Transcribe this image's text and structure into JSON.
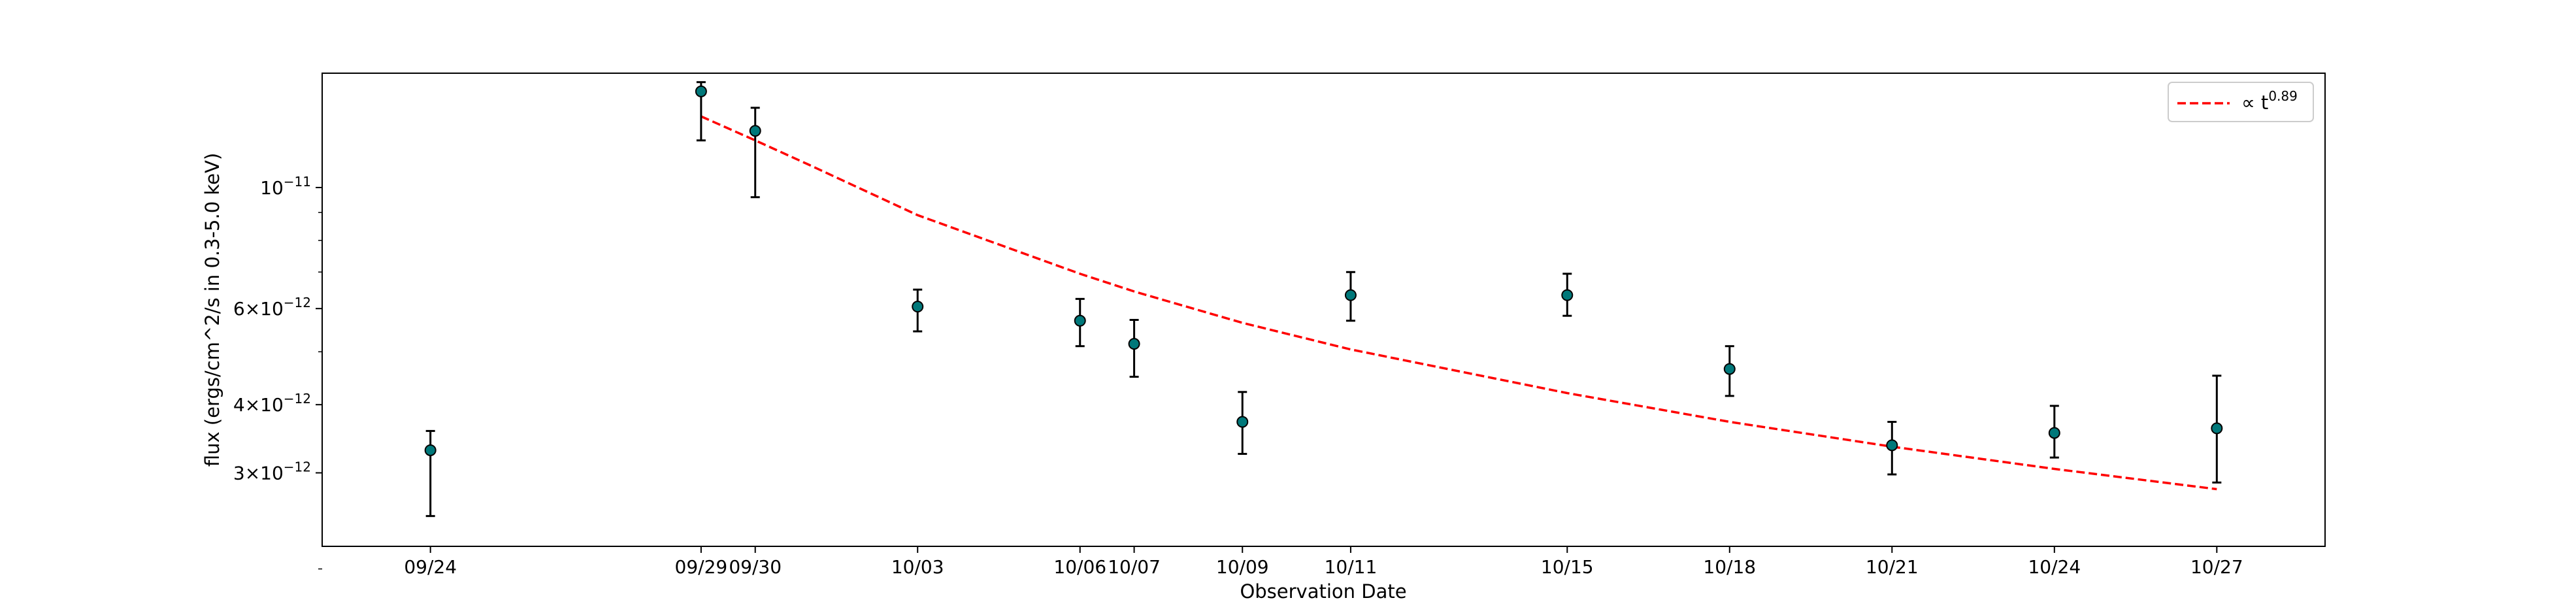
{
  "chart_data": {
    "type": "scatter",
    "title": "",
    "xlabel": "Observation Date",
    "ylabel": "flux (ergs/cm^2/s in 0.3-5.0 keV)",
    "yscale": "log",
    "ylim": [
      2.2e-12,
      1.62e-11
    ],
    "xlim": [
      "09/22",
      "10/29"
    ],
    "x_ticks": [
      "09/24",
      "09/29",
      "09/30",
      "10/03",
      "10/06",
      "10/07",
      "10/09",
      "10/11",
      "10/15",
      "10/18",
      "10/21",
      "10/24",
      "10/27"
    ],
    "y_ticks": [
      {
        "value": 1e-11,
        "mantissa": "10",
        "exp": "−11"
      },
      {
        "value": 6e-12,
        "mantissa": "6×10",
        "exp": "−12"
      },
      {
        "value": 4e-12,
        "mantissa": "4×10",
        "exp": "−12"
      },
      {
        "value": 3e-12,
        "mantissa": "3×10",
        "exp": "−12"
      }
    ],
    "y_minor_ticks": [
      2e-12,
      5e-12,
      7e-12,
      8e-12,
      9e-12
    ],
    "grid": false,
    "legend_position": "top-right",
    "colors": {
      "points": "#00787a",
      "error_bars": "#000000",
      "fit": "#ff0000"
    },
    "series": [
      {
        "kind": "data",
        "points": [
          {
            "x": "09/24",
            "y": 3.3e-12,
            "ylo": 2.5e-12,
            "yhi": 3.58e-12
          },
          {
            "x": "09/29",
            "y": 1.5e-11,
            "ylo": 1.22e-11,
            "yhi": 1.56e-11
          },
          {
            "x": "09/30",
            "y": 1.27e-11,
            "ylo": 9.6e-12,
            "yhi": 1.4e-11
          },
          {
            "x": "10/03",
            "y": 6.05e-12,
            "ylo": 5.45e-12,
            "yhi": 6.5e-12
          },
          {
            "x": "10/06",
            "y": 5.7e-12,
            "ylo": 5.12e-12,
            "yhi": 6.25e-12
          },
          {
            "x": "10/07",
            "y": 5.17e-12,
            "ylo": 4.5e-12,
            "yhi": 5.72e-12
          },
          {
            "x": "10/09",
            "y": 3.72e-12,
            "ylo": 3.25e-12,
            "yhi": 4.22e-12
          },
          {
            "x": "10/11",
            "y": 6.35e-12,
            "ylo": 5.7e-12,
            "yhi": 7e-12
          },
          {
            "x": "10/15",
            "y": 6.35e-12,
            "ylo": 5.82e-12,
            "yhi": 6.95e-12
          },
          {
            "x": "10/18",
            "y": 4.65e-12,
            "ylo": 4.15e-12,
            "yhi": 5.12e-12
          },
          {
            "x": "10/21",
            "y": 3.37e-12,
            "ylo": 2.98e-12,
            "yhi": 3.72e-12
          },
          {
            "x": "10/24",
            "y": 3.55e-12,
            "ylo": 3.2e-12,
            "yhi": 3.98e-12
          },
          {
            "x": "10/27",
            "y": 3.62e-12,
            "ylo": 2.88e-12,
            "yhi": 4.52e-12
          }
        ]
      },
      {
        "kind": "fit",
        "name": "∝ t",
        "name_exp": "0.89",
        "style": "dashed",
        "points": [
          {
            "x": "09/29",
            "y": 1.35e-11
          },
          {
            "x": "09/30",
            "y": 1.22e-11
          },
          {
            "x": "10/01",
            "y": 1.1e-11
          },
          {
            "x": "10/03",
            "y": 8.9e-12
          },
          {
            "x": "10/06",
            "y": 6.95e-12
          },
          {
            "x": "10/07",
            "y": 6.45e-12
          },
          {
            "x": "10/09",
            "y": 5.65e-12
          },
          {
            "x": "10/11",
            "y": 5.05e-12
          },
          {
            "x": "10/15",
            "y": 4.2e-12
          },
          {
            "x": "10/18",
            "y": 3.72e-12
          },
          {
            "x": "10/21",
            "y": 3.35e-12
          },
          {
            "x": "10/24",
            "y": 3.05e-12
          },
          {
            "x": "10/27",
            "y": 2.8e-12
          }
        ]
      }
    ]
  }
}
